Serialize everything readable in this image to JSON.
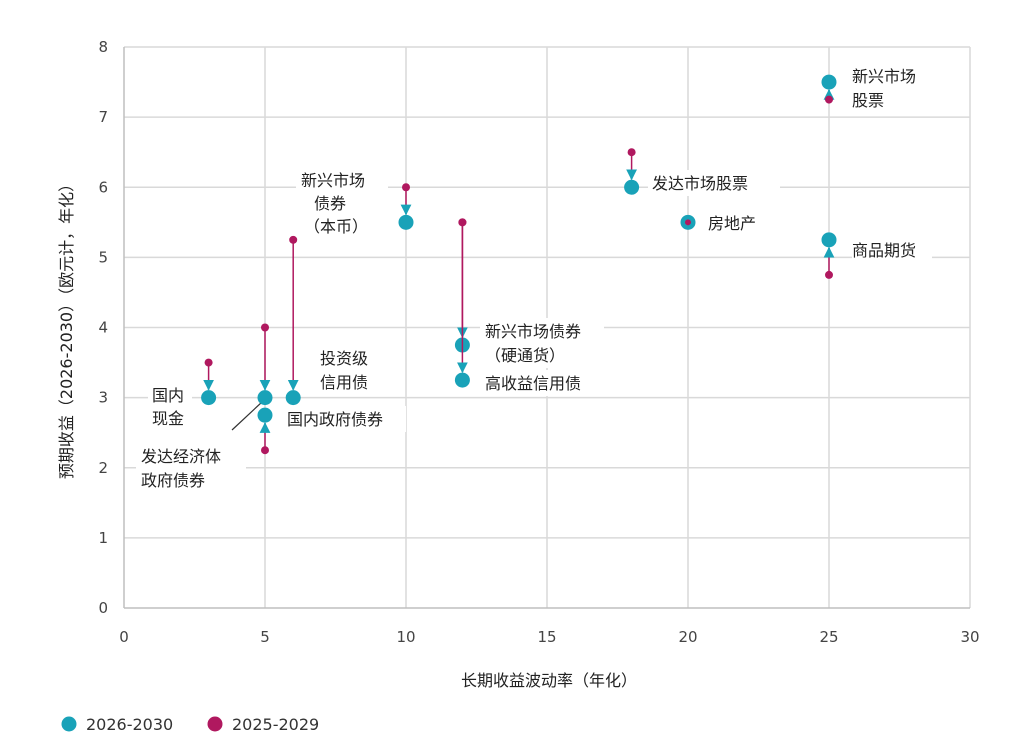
{
  "chart_data": {
    "type": "scatter",
    "xlabel": "长期收益波动率（年化）",
    "ylabel": "预期收益（2026-2030）（欧元计，年化）",
    "xlim": [
      0,
      30
    ],
    "ylim": [
      0,
      8
    ],
    "xticks": [
      "0",
      "5",
      "10",
      "15",
      "20",
      "25",
      "30"
    ],
    "yticks": [
      "0",
      "1",
      "2",
      "3",
      "4",
      "5",
      "6",
      "7",
      "8"
    ],
    "grid": true,
    "legend_position": "bottom-left",
    "series": [
      {
        "name": "2026-2030",
        "color": "#19a2b8"
      },
      {
        "name": "2025-2029",
        "color": "#b0185f"
      }
    ],
    "points": [
      {
        "label": [
          "国内",
          "现金"
        ],
        "x": 3,
        "y_2026_2030": 3.0,
        "y_2025_2029": 3.5
      },
      {
        "label": [
          "发达经济体",
          "政府债券"
        ],
        "x": 5,
        "y_2026_2030": 2.75,
        "y_2025_2029": 2.25
      },
      {
        "label": [
          "投资级",
          "信用债"
        ],
        "x": 5,
        "y_2026_2030": 3.0,
        "y_2025_2029": 4.0
      },
      {
        "label": [
          "国内政府债券"
        ],
        "x": 6,
        "y_2026_2030": 3.0,
        "y_2025_2029": 5.25
      },
      {
        "label": [
          "新兴市场",
          "债券",
          "（本币）"
        ],
        "x": 10,
        "y_2026_2030": 5.5,
        "y_2025_2029": 6.0
      },
      {
        "label": [
          "新兴市场债券",
          "（硬通货）"
        ],
        "x": 12,
        "y_2026_2030": 3.75,
        "y_2025_2029": 5.5
      },
      {
        "label": [
          "高收益信用债"
        ],
        "x": 12,
        "y_2026_2030": 3.25,
        "y_2025_2029": 5.5
      },
      {
        "label": [
          "发达市场股票"
        ],
        "x": 18,
        "y_2026_2030": 6.0,
        "y_2025_2029": 6.5
      },
      {
        "label": [
          "房地产"
        ],
        "x": 20,
        "y_2026_2030": 5.5,
        "y_2025_2029": 5.5
      },
      {
        "label": [
          "商品期货"
        ],
        "x": 25,
        "y_2026_2030": 5.25,
        "y_2025_2029": 4.75
      },
      {
        "label": [
          "新兴市场",
          "股票"
        ],
        "x": 25,
        "y_2026_2030": 7.5,
        "y_2025_2029": 7.25
      }
    ]
  }
}
